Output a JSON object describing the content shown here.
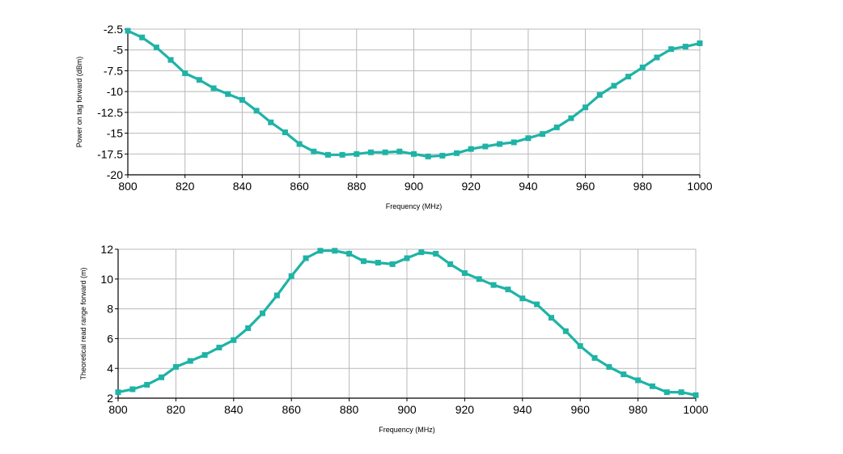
{
  "colors": {
    "series": "#1fb3a6",
    "grid": "#b8b8b8",
    "axis": "#000000",
    "background": "#ffffff"
  },
  "chart_data": [
    {
      "type": "line",
      "xlabel": "Frequency (MHz)",
      "ylabel": "Power on tag forward (dBm)",
      "xlim": [
        800,
        1000
      ],
      "ylim": [
        -20,
        -2.5
      ],
      "xticks": [
        800,
        820,
        840,
        860,
        880,
        900,
        920,
        940,
        960,
        980,
        1000
      ],
      "yticks": [
        -2.5,
        -5,
        -7.5,
        -10,
        -12.5,
        -15,
        -17.5,
        -20
      ],
      "grid": true,
      "series": [
        {
          "x": [
            800,
            805,
            810,
            815,
            820,
            825,
            830,
            835,
            840,
            845,
            850,
            855,
            860,
            865,
            870,
            875,
            880,
            885,
            890,
            895,
            900,
            905,
            910,
            915,
            920,
            925,
            930,
            935,
            940,
            945,
            950,
            955,
            960,
            965,
            970,
            975,
            980,
            985,
            990,
            995,
            1000
          ],
          "values": [
            -2.7,
            -3.5,
            -4.7,
            -6.2,
            -7.8,
            -8.6,
            -9.6,
            -10.3,
            -11.0,
            -12.3,
            -13.7,
            -14.9,
            -16.3,
            -17.2,
            -17.6,
            -17.6,
            -17.5,
            -17.3,
            -17.3,
            -17.2,
            -17.5,
            -17.8,
            -17.7,
            -17.4,
            -16.9,
            -16.6,
            -16.3,
            -16.1,
            -15.6,
            -15.1,
            -14.3,
            -13.2,
            -11.9,
            -10.4,
            -9.3,
            -8.2,
            -7.1,
            -5.9,
            -4.9,
            -4.6,
            -4.2
          ]
        }
      ]
    },
    {
      "type": "line",
      "xlabel": "Frequency (MHz)",
      "ylabel": "Theoretical read range forward (m)",
      "xlim": [
        800,
        1000
      ],
      "ylim": [
        2,
        12
      ],
      "xticks": [
        800,
        820,
        840,
        860,
        880,
        900,
        920,
        940,
        960,
        980,
        1000
      ],
      "yticks": [
        2,
        4,
        6,
        8,
        10,
        12
      ],
      "grid": true,
      "series": [
        {
          "x": [
            800,
            805,
            810,
            815,
            820,
            825,
            830,
            835,
            840,
            845,
            850,
            855,
            860,
            865,
            870,
            875,
            880,
            885,
            890,
            895,
            900,
            905,
            910,
            915,
            920,
            925,
            930,
            935,
            940,
            945,
            950,
            955,
            960,
            965,
            970,
            975,
            980,
            985,
            990,
            995,
            1000
          ],
          "values": [
            2.4,
            2.6,
            2.9,
            3.4,
            4.1,
            4.5,
            4.9,
            5.4,
            5.9,
            6.7,
            7.7,
            8.9,
            10.2,
            11.4,
            11.9,
            11.9,
            11.7,
            11.2,
            11.1,
            11.0,
            11.4,
            11.8,
            11.7,
            11.0,
            10.4,
            10.0,
            9.6,
            9.3,
            8.7,
            8.3,
            7.4,
            6.5,
            5.5,
            4.7,
            4.1,
            3.6,
            3.2,
            2.8,
            2.4,
            2.4,
            2.2
          ]
        }
      ]
    }
  ]
}
